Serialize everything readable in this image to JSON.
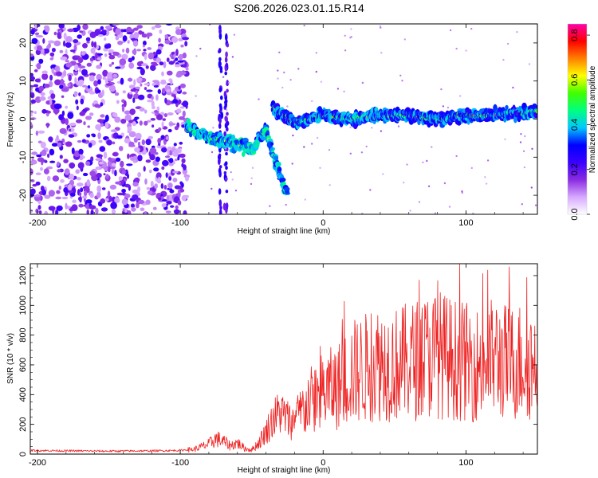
{
  "figure_title": "S206.2026.023.01.15.R14",
  "chart_data": [
    {
      "type": "heatmap",
      "title": "S206.2026.023.01.15.R14",
      "xlabel": "Height of straight line (km)",
      "ylabel": "Frequency (Hz)",
      "xlim": [
        -205,
        150
      ],
      "ylim": [
        -25,
        25
      ],
      "xticks": [
        -200,
        -100,
        0,
        100
      ],
      "yticks": [
        -20,
        -10,
        0,
        10,
        20
      ],
      "colorbar": {
        "label": "Normalized spectral amplitude",
        "range": [
          0.0,
          0.85
        ],
        "ticks": [
          0.0,
          0.2,
          0.4,
          0.6,
          0.8
        ],
        "colors": [
          "#ffffff",
          "#d6a8ff",
          "#8a2be2",
          "#3a00ff",
          "#0000ff",
          "#00c8ff",
          "#00ff80",
          "#40ff00",
          "#ffff00",
          "#ff8000",
          "#ff0000",
          "#ff00aa"
        ]
      },
      "features": [
        {
          "name": "diffuse noise",
          "x_range": [
            -205,
            -95
          ],
          "freq_range": [
            -25,
            25
          ]
        },
        {
          "name": "descending branch",
          "x": [
            -95,
            -80,
            -65,
            -50,
            -40,
            -30,
            -25
          ],
          "freq": [
            -2,
            -5,
            -6,
            -8,
            -3,
            -15,
            -20
          ]
        },
        {
          "name": "main carrier",
          "x": [
            -35,
            -20,
            0,
            20,
            40,
            60,
            80,
            100,
            120,
            150
          ],
          "freq": [
            3,
            -1,
            1,
            0,
            1,
            1,
            0,
            1,
            1,
            2
          ]
        }
      ]
    },
    {
      "type": "line",
      "xlabel": "Height of straight line (km)",
      "ylabel": "SNR (10 * v/v)",
      "xlim": [
        -205,
        150
      ],
      "ylim": [
        0,
        1280
      ],
      "xticks": [
        -200,
        -100,
        0,
        100
      ],
      "yticks": [
        0,
        200,
        400,
        600,
        800,
        1000,
        1200
      ],
      "series": [
        {
          "name": "SNR",
          "color": "#ee2222",
          "x": [
            -205,
            -180,
            -150,
            -120,
            -100,
            -90,
            -80,
            -75,
            -70,
            -65,
            -60,
            -55,
            -50,
            -45,
            -40,
            -35,
            -30,
            -25,
            -20,
            -10,
            0,
            10,
            20,
            30,
            40,
            50,
            60,
            70,
            80,
            90,
            100,
            110,
            120,
            130,
            140,
            150
          ],
          "y": [
            25,
            22,
            20,
            22,
            25,
            35,
            70,
            110,
            90,
            60,
            80,
            40,
            30,
            80,
            160,
            250,
            300,
            250,
            220,
            350,
            420,
            450,
            550,
            580,
            620,
            600,
            620,
            650,
            680,
            640,
            620,
            600,
            650,
            610,
            630,
            600
          ]
        }
      ]
    }
  ]
}
